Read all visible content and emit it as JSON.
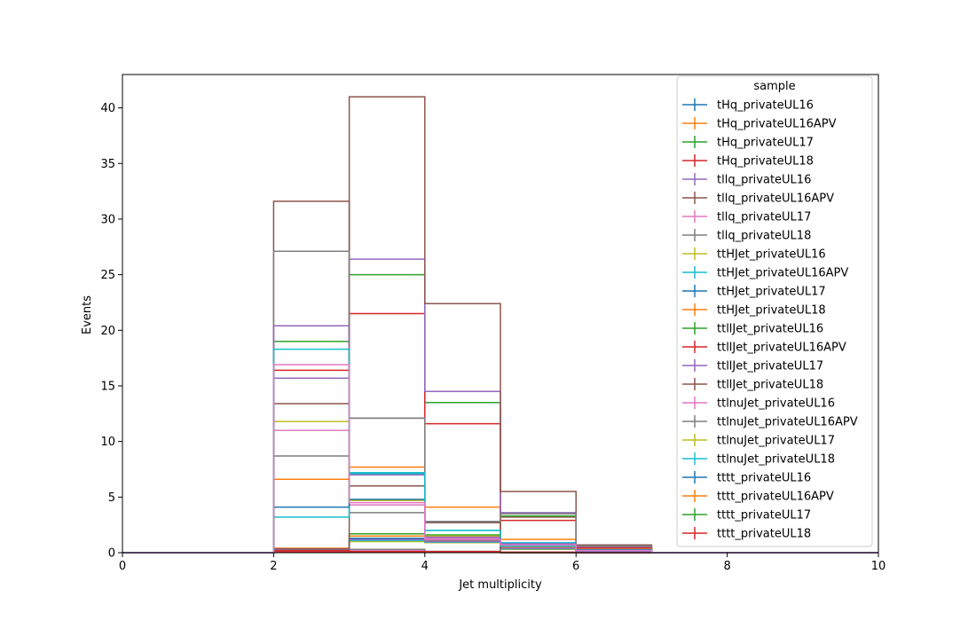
{
  "chart_data": {
    "type": "histogram-step",
    "xlabel": "Jet multiplicity",
    "ylabel": "Events",
    "xlim": [
      0,
      10
    ],
    "ylim": [
      0,
      43
    ],
    "x_ticks": [
      0,
      2,
      4,
      6,
      8,
      10
    ],
    "y_ticks": [
      0,
      5,
      10,
      15,
      20,
      25,
      30,
      35,
      40
    ],
    "grid": false,
    "legend_title": "sample",
    "legend_position": "upper-right",
    "bin_edges": [
      0,
      1,
      2,
      3,
      4,
      5,
      6,
      7,
      8,
      9,
      10
    ],
    "series": [
      {
        "name": "tHq_privateUL16",
        "color": "#1f77b4",
        "values": [
          0,
          0,
          0.05,
          0.05,
          0.02,
          0.01,
          0,
          0,
          0,
          0
        ]
      },
      {
        "name": "tHq_privateUL16APV",
        "color": "#ff7f0e",
        "values": [
          0,
          0,
          0.04,
          0.04,
          0.02,
          0.01,
          0,
          0,
          0,
          0
        ]
      },
      {
        "name": "tHq_privateUL17",
        "color": "#2ca02c",
        "values": [
          0,
          0,
          0.06,
          0.06,
          0.03,
          0.01,
          0,
          0,
          0,
          0
        ]
      },
      {
        "name": "tHq_privateUL18",
        "color": "#d62728",
        "values": [
          0,
          0,
          0.08,
          0.08,
          0.04,
          0.01,
          0,
          0,
          0,
          0
        ]
      },
      {
        "name": "tllq_privateUL16",
        "color": "#9467bd",
        "values": [
          0,
          0,
          0.2,
          0.2,
          0.08,
          0.02,
          0,
          0,
          0,
          0
        ]
      },
      {
        "name": "tllq_privateUL16APV",
        "color": "#8c564b",
        "values": [
          0,
          0,
          0.2,
          0.18,
          0.07,
          0.02,
          0,
          0,
          0,
          0
        ]
      },
      {
        "name": "tllq_privateUL17",
        "color": "#e377c2",
        "values": [
          0,
          0,
          0.25,
          0.22,
          0.09,
          0.02,
          0,
          0,
          0,
          0
        ]
      },
      {
        "name": "tllq_privateUL18",
        "color": "#7f7f7f",
        "values": [
          0,
          0,
          0.35,
          0.3,
          0.12,
          0.03,
          0,
          0,
          0,
          0
        ]
      },
      {
        "name": "ttHJet_privateUL16",
        "color": "#bcbd22",
        "values": [
          0,
          0,
          0.3,
          1.0,
          0.9,
          0.3,
          0.1,
          0,
          0,
          0
        ]
      },
      {
        "name": "ttHJet_privateUL16APV",
        "color": "#17becf",
        "values": [
          0,
          0,
          0.3,
          1.1,
          0.95,
          0.35,
          0.1,
          0,
          0,
          0
        ]
      },
      {
        "name": "ttHJet_privateUL17",
        "color": "#1f77b4",
        "values": [
          0,
          0,
          0.35,
          1.3,
          1.1,
          0.4,
          0.15,
          0,
          0,
          0
        ]
      },
      {
        "name": "ttHJet_privateUL18",
        "color": "#ff7f0e",
        "values": [
          0,
          0,
          0.4,
          1.5,
          1.3,
          0.5,
          0.2,
          0,
          0,
          0
        ]
      },
      {
        "name": "ttllJet_privateUL16",
        "color": "#2ca02c",
        "values": [
          0,
          0,
          0.3,
          1.7,
          1.6,
          0.6,
          0.2,
          0,
          0,
          0
        ]
      },
      {
        "name": "ttllJet_privateUL16APV",
        "color": "#d62728",
        "values": [
          0,
          0,
          0.2,
          0.1,
          0.1,
          0.05,
          0,
          0,
          0,
          0
        ]
      },
      {
        "name": "ttllJet_privateUL17",
        "color": "#9467bd",
        "values": [
          0,
          0,
          0.3,
          1.2,
          1.0,
          0.4,
          0.1,
          0,
          0,
          0
        ]
      },
      {
        "name": "ttllJet_privateUL18",
        "color": "#8c564b",
        "values": [
          0,
          0,
          0.35,
          6.0,
          2.7,
          3.2,
          0.6,
          0,
          0,
          0
        ]
      },
      {
        "name": "ttlnuJet_privateUL16",
        "color": "#e377c2",
        "values": [
          0,
          0,
          11.0,
          4.3,
          1.3,
          0.7,
          0.2,
          0,
          0,
          0
        ]
      },
      {
        "name": "ttlnuJet_privateUL16APV",
        "color": "#7f7f7f",
        "values": [
          0,
          0,
          8.7,
          3.6,
          1.1,
          0.6,
          0.2,
          0,
          0,
          0
        ]
      },
      {
        "name": "ttlnuJet_privateUL17",
        "color": "#bcbd22",
        "values": [
          0,
          0,
          11.8,
          4.7,
          1.5,
          0.8,
          0.25,
          0,
          0,
          0
        ]
      },
      {
        "name": "ttlnuJet_privateUL18",
        "color": "#17becf",
        "values": [
          0,
          0,
          3.2,
          7.1,
          2.0,
          0.9,
          0.3,
          0,
          0,
          0
        ]
      },
      {
        "name": "tttt_privateUL16",
        "color": "#1f77b4",
        "values": [
          0,
          0,
          4.1,
          4.8,
          2.8,
          0.6,
          0.3,
          0,
          0,
          0
        ]
      },
      {
        "name": "tttt_privateUL16APV",
        "color": "#ff7f0e",
        "values": [
          0,
          0,
          6.6,
          7.7,
          4.1,
          1.2,
          0.4,
          0,
          0,
          0
        ]
      },
      {
        "name": "tttt_privateUL17",
        "color": "#2ca02c",
        "values": [
          0,
          0,
          19.0,
          25.0,
          13.5,
          3.3,
          0.5,
          0,
          0,
          0
        ]
      },
      {
        "name": "tttt_privateUL18",
        "color": "#d62728",
        "values": [
          0,
          0,
          16.4,
          21.5,
          11.6,
          2.9,
          0.45,
          0,
          0,
          0
        ]
      },
      {
        "name": "",
        "color": "#9467bd",
        "values": [
          0,
          0,
          15.7,
          26.4,
          14.5,
          3.6,
          0.55,
          0,
          0,
          0
        ]
      },
      {
        "name": "",
        "color": "#8c564b",
        "values": [
          0,
          0,
          13.4,
          41.0,
          22.4,
          5.5,
          0.7,
          0,
          0,
          0
        ]
      },
      {
        "name": "",
        "color": "#8c564b",
        "values": [
          0,
          0,
          31.6,
          12.1,
          2.8,
          0,
          0,
          0,
          0,
          0
        ]
      },
      {
        "name": "",
        "color": "#7f7f7f",
        "values": [
          0,
          0,
          27.1,
          12.1,
          2.8,
          3.5,
          0.6,
          0,
          0,
          0
        ]
      },
      {
        "name": "",
        "color": "#9467bd",
        "values": [
          0,
          0,
          20.4,
          7.0,
          1.4,
          0.8,
          0.2,
          0,
          0,
          0
        ]
      },
      {
        "name": "",
        "color": "#17becf",
        "values": [
          0,
          0,
          18.3,
          7.2,
          2.0,
          0.6,
          0.2,
          0,
          0,
          0
        ]
      },
      {
        "name": "",
        "color": "#e377c2",
        "values": [
          0,
          0,
          16.9,
          4.5,
          1.2,
          0.7,
          0.2,
          0,
          0,
          0
        ]
      }
    ]
  }
}
